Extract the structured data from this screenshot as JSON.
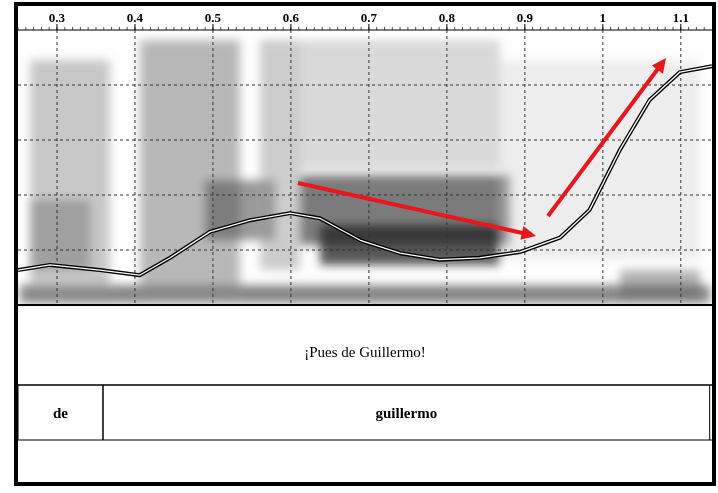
{
  "chart_data": {
    "type": "line",
    "title": "¡Pues de Guillermo!",
    "x": [
      0.25,
      0.291,
      0.355,
      0.406,
      0.445,
      0.496,
      0.548,
      0.599,
      0.637,
      0.689,
      0.74,
      0.791,
      0.842,
      0.894,
      0.945,
      0.983,
      1.022,
      1.06,
      1.099,
      1.14
    ],
    "values": [
      129,
      137,
      129,
      121,
      148,
      188,
      206,
      217,
      209,
      175,
      155,
      145,
      148,
      157,
      179,
      222,
      315,
      392,
      435,
      444
    ],
    "xlim": [
      0.25,
      1.14
    ],
    "xticks": [
      0.3,
      0.4,
      0.5,
      0.6,
      0.7,
      0.8,
      0.9,
      1,
      1.1
    ],
    "ylim": [
      75,
      500
    ],
    "yticks": [
      160,
      245,
      330,
      415
    ],
    "grid": true,
    "tick_labels": "x",
    "color": "#000000",
    "words": [
      {
        "label": "de",
        "start": 0.25,
        "end": 0.359
      },
      {
        "label": "guillermo",
        "start": 0.359,
        "end": 1.137
      }
    ]
  }
}
